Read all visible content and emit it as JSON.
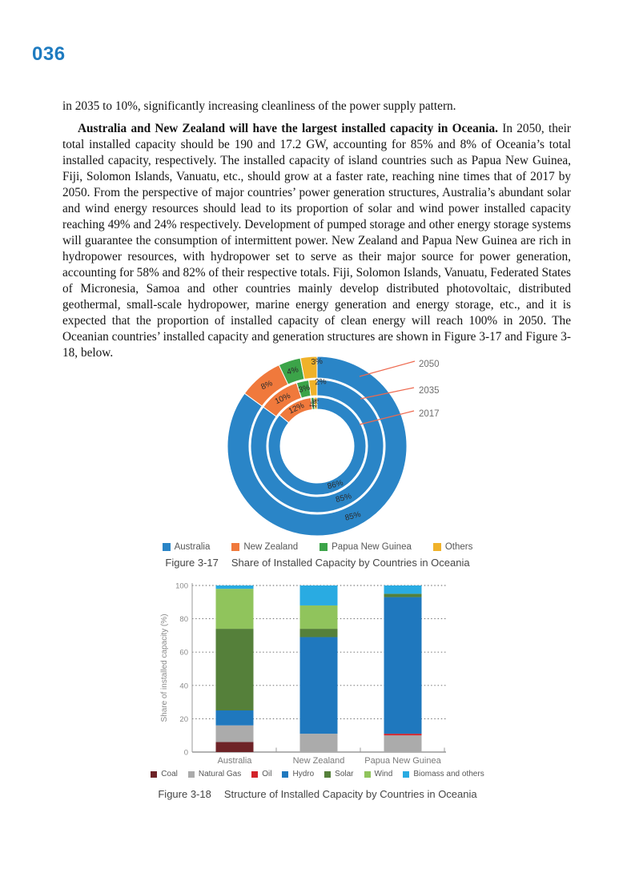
{
  "page": {
    "number": "036"
  },
  "paragraphs": {
    "p1": "in 2035 to 10%, significantly increasing cleanliness of the power supply pattern.",
    "p2_bold": "Australia and New Zealand will have the largest installed capacity in Oceania.",
    "p2_rest": " In 2050, their total installed capacity should be 190 and 17.2 GW, accounting for 85% and 8% of Oceania’s total installed capacity, respectively. The installed capacity of island countries such as Papua New Guinea, Fiji, Solomon Islands, Vanuatu, etc., should grow at a faster rate, reaching nine times that of 2017 by 2050. From the perspective of major countries’ power generation structures, Australia’s abundant solar and wind energy resources should lead to its proportion of solar and wind power installed capacity reaching 49% and 24% respectively. Development of pumped storage and other energy storage systems will guarantee the consumption of intermittent power. New Zealand and Papua New Guinea are rich in hydropower resources, with hydropower set to serve as their major source for power generation, accounting for 58% and 82% of their respective totals. Fiji, Solomon Islands, Vanuatu, Federated States of Micronesia, Samoa and other countries mainly develop distributed photovoltaic, distributed geothermal, small-scale hydropower, marine energy generation and energy storage, etc., and it is expected that the proportion of installed capacity of clean energy will reach 100% in 2050. The Oceanian countries’ installed capacity and generation structures are shown in Figure 3-17 and Figure 3-18, below."
  },
  "chart_data": [
    {
      "type": "pie",
      "variant": "multi-ring-donut",
      "figure_label": "Figure 3-17",
      "title": "Share of Installed Capacity by Countries in Oceania",
      "categories": [
        "Australia",
        "New Zealand",
        "Papua New Guinea",
        "Others"
      ],
      "colors": [
        "#2A85C7",
        "#F0793C",
        "#3CA449",
        "#F0B22A"
      ],
      "unit": "%",
      "rings": [
        {
          "year": "2017",
          "values": [
            86,
            12,
            1,
            1
          ]
        },
        {
          "year": "2035",
          "values": [
            85,
            10,
            3,
            2
          ]
        },
        {
          "year": "2050",
          "values": [
            85,
            8,
            4,
            3
          ]
        }
      ],
      "callout_years_top_to_bottom": [
        "2050",
        "2035",
        "2017"
      ],
      "callout_line_color": "#EE6A50",
      "legend_position": "bottom"
    },
    {
      "type": "bar",
      "stacked": true,
      "figure_label": "Figure 3-18",
      "title": "Structure of Installed Capacity by Countries in Oceania",
      "categories": [
        "Australia",
        "New Zealand",
        "Papua New Guinea"
      ],
      "series": [
        {
          "name": "Coal",
          "color": "#6E2327",
          "values": [
            6,
            0,
            0
          ]
        },
        {
          "name": "Natural Gas",
          "color": "#ABABAB",
          "values": [
            10,
            11,
            10
          ]
        },
        {
          "name": "Oil",
          "color": "#D2232A",
          "values": [
            0,
            0,
            1
          ]
        },
        {
          "name": "Hydro",
          "color": "#1F78BE",
          "values": [
            9,
            58,
            82
          ]
        },
        {
          "name": "Solar",
          "color": "#55803A",
          "values": [
            49,
            5,
            2
          ]
        },
        {
          "name": "Wind",
          "color": "#90C45C",
          "values": [
            24,
            14,
            0
          ]
        },
        {
          "name": "Biomass and others",
          "color": "#29ABE2",
          "values": [
            2,
            12,
            5
          ]
        }
      ],
      "ylabel": "Share of installed capacity (%)",
      "ylim": [
        0,
        100
      ],
      "yticks": [
        0,
        20,
        40,
        60,
        80,
        100
      ],
      "grid": "dotted-horizontal",
      "legend_position": "bottom"
    }
  ]
}
